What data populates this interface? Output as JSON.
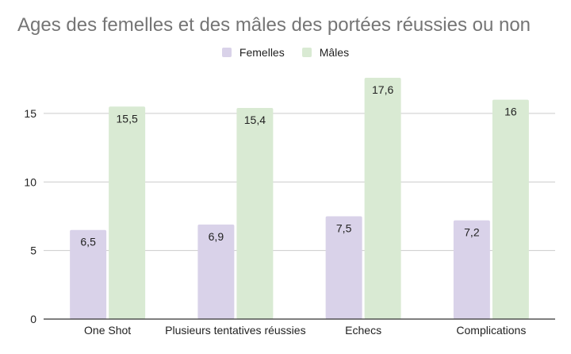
{
  "chart_data": {
    "type": "bar",
    "title": "Ages des femelles et des mâles des portées réussies ou non",
    "categories": [
      "One Shot",
      "Plusieurs tentatives réussies",
      "Echecs",
      "Complications"
    ],
    "series": [
      {
        "name": "Femelles",
        "color": "#d9d2e9",
        "values": [
          6.5,
          6.9,
          7.5,
          7.2
        ],
        "labels": [
          "6,5",
          "6,9",
          "7,5",
          "7,2"
        ]
      },
      {
        "name": "Mâles",
        "color": "#d9ead3",
        "values": [
          15.5,
          15.4,
          17.6,
          16
        ],
        "labels": [
          "15,5",
          "15,4",
          "17,6",
          "16"
        ]
      }
    ],
    "yticks": [
      0,
      5,
      10,
      15
    ],
    "ylim": [
      0,
      17.6
    ],
    "xlabel": "",
    "ylabel": "",
    "grid": true,
    "legend_position": "top"
  }
}
